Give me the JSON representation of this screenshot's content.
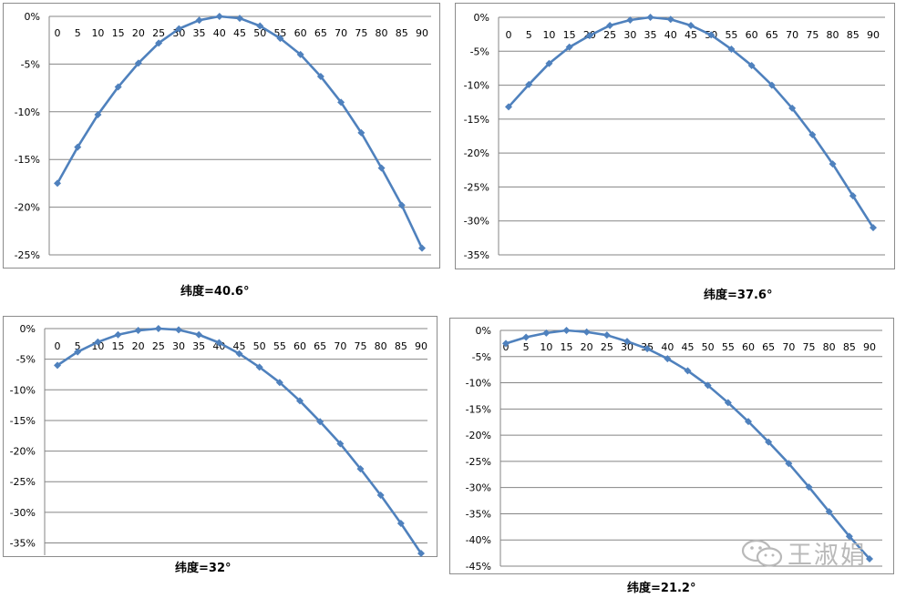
{
  "colors": {
    "series": "#4f81bd",
    "grid": "#858585",
    "text": "#000000"
  },
  "chart_data": [
    {
      "type": "line",
      "title": "纬度=40.6°",
      "x": [
        0,
        5,
        10,
        15,
        20,
        25,
        30,
        35,
        40,
        45,
        50,
        55,
        60,
        65,
        70,
        75,
        80,
        85,
        90
      ],
      "values": [
        -17.5,
        -13.7,
        -10.3,
        -7.4,
        -4.9,
        -2.8,
        -1.3,
        -0.4,
        0,
        -0.2,
        -1.0,
        -2.3,
        -4.0,
        -6.3,
        -9.0,
        -12.2,
        -15.9,
        -19.8,
        -24.3
      ],
      "yticks": [
        0,
        -5,
        -10,
        -15,
        -20,
        -25
      ],
      "ytick_labels": [
        "0%",
        "-5%",
        "-10%",
        "-15%",
        "-20%",
        "-25%"
      ],
      "xtick_labels": [
        "0",
        "5",
        "10",
        "15",
        "20",
        "25",
        "30",
        "35",
        "40",
        "45",
        "50",
        "55",
        "60",
        "65",
        "70",
        "75",
        "80",
        "85",
        "90"
      ],
      "ylim": [
        -25,
        0
      ],
      "grid": true
    },
    {
      "type": "line",
      "title": "纬度=37.6°",
      "x": [
        0,
        5,
        10,
        15,
        20,
        25,
        30,
        35,
        40,
        45,
        50,
        55,
        60,
        65,
        70,
        75,
        80,
        85,
        90
      ],
      "values": [
        -13.2,
        -9.9,
        -6.8,
        -4.4,
        -2.7,
        -1.2,
        -0.4,
        0,
        -0.3,
        -1.2,
        -2.6,
        -4.7,
        -7.1,
        -10.0,
        -13.4,
        -17.3,
        -21.6,
        -26.3,
        -31.0
      ],
      "yticks": [
        0,
        -5,
        -10,
        -15,
        -20,
        -25,
        -30,
        -35
      ],
      "ytick_labels": [
        "0%",
        "-5%",
        "-10%",
        "-15%",
        "-20%",
        "-25%",
        "-30%",
        "-35%"
      ],
      "xtick_labels": [
        "0",
        "5",
        "10",
        "15",
        "20",
        "25",
        "30",
        "35",
        "40",
        "45",
        "50",
        "55",
        "60",
        "65",
        "70",
        "75",
        "80",
        "85",
        "90"
      ],
      "ylim": [
        -35,
        0
      ],
      "grid": true
    },
    {
      "type": "line",
      "title": "纬度=32°",
      "x": [
        0,
        5,
        10,
        15,
        20,
        25,
        30,
        35,
        40,
        45,
        50,
        55,
        60,
        65,
        70,
        75,
        80,
        85,
        90
      ],
      "values": [
        -6.0,
        -3.8,
        -2.2,
        -1.0,
        -0.3,
        0,
        -0.2,
        -1.0,
        -2.3,
        -4.1,
        -6.3,
        -8.8,
        -11.8,
        -15.2,
        -18.8,
        -22.9,
        -27.2,
        -31.8,
        -36.7
      ],
      "yticks": [
        0,
        -5,
        -10,
        -15,
        -20,
        -25,
        -30,
        -35
      ],
      "ytick_labels": [
        "0%",
        "-5%",
        "-10%",
        "-15%",
        "-20%",
        "-25%",
        "-30%",
        "-35%"
      ],
      "xtick_labels": [
        "0",
        "5",
        "10",
        "15",
        "20",
        "25",
        "30",
        "35",
        "40",
        "45",
        "50",
        "55",
        "60",
        "65",
        "70",
        "75",
        "80",
        "85",
        "90"
      ],
      "ylim": [
        -37,
        0
      ],
      "grid": true
    },
    {
      "type": "line",
      "title": "纬度=21.2°",
      "x": [
        0,
        5,
        10,
        15,
        20,
        25,
        30,
        35,
        40,
        45,
        50,
        55,
        60,
        65,
        70,
        75,
        80,
        85,
        90
      ],
      "values": [
        -2.5,
        -1.3,
        -0.5,
        0,
        -0.3,
        -0.9,
        -2.1,
        -3.5,
        -5.4,
        -7.7,
        -10.5,
        -13.8,
        -17.4,
        -21.3,
        -25.4,
        -29.9,
        -34.6,
        -39.3,
        -43.6
      ],
      "yticks": [
        0,
        -5,
        -10,
        -15,
        -20,
        -25,
        -30,
        -35,
        -40,
        -45
      ],
      "ytick_labels": [
        "0%",
        "-5%",
        "-10%",
        "-15%",
        "-20%",
        "-25%",
        "-30%",
        "-35%",
        "-40%",
        "-45%"
      ],
      "xtick_labels": [
        "0",
        "5",
        "10",
        "15",
        "20",
        "25",
        "30",
        "35",
        "40",
        "45",
        "50",
        "55",
        "60",
        "65",
        "70",
        "75",
        "80",
        "85",
        "90"
      ],
      "ylim": [
        -45,
        0
      ],
      "grid": true
    }
  ],
  "watermark": {
    "text": "王淑娟",
    "icon": "wechat-icon"
  }
}
